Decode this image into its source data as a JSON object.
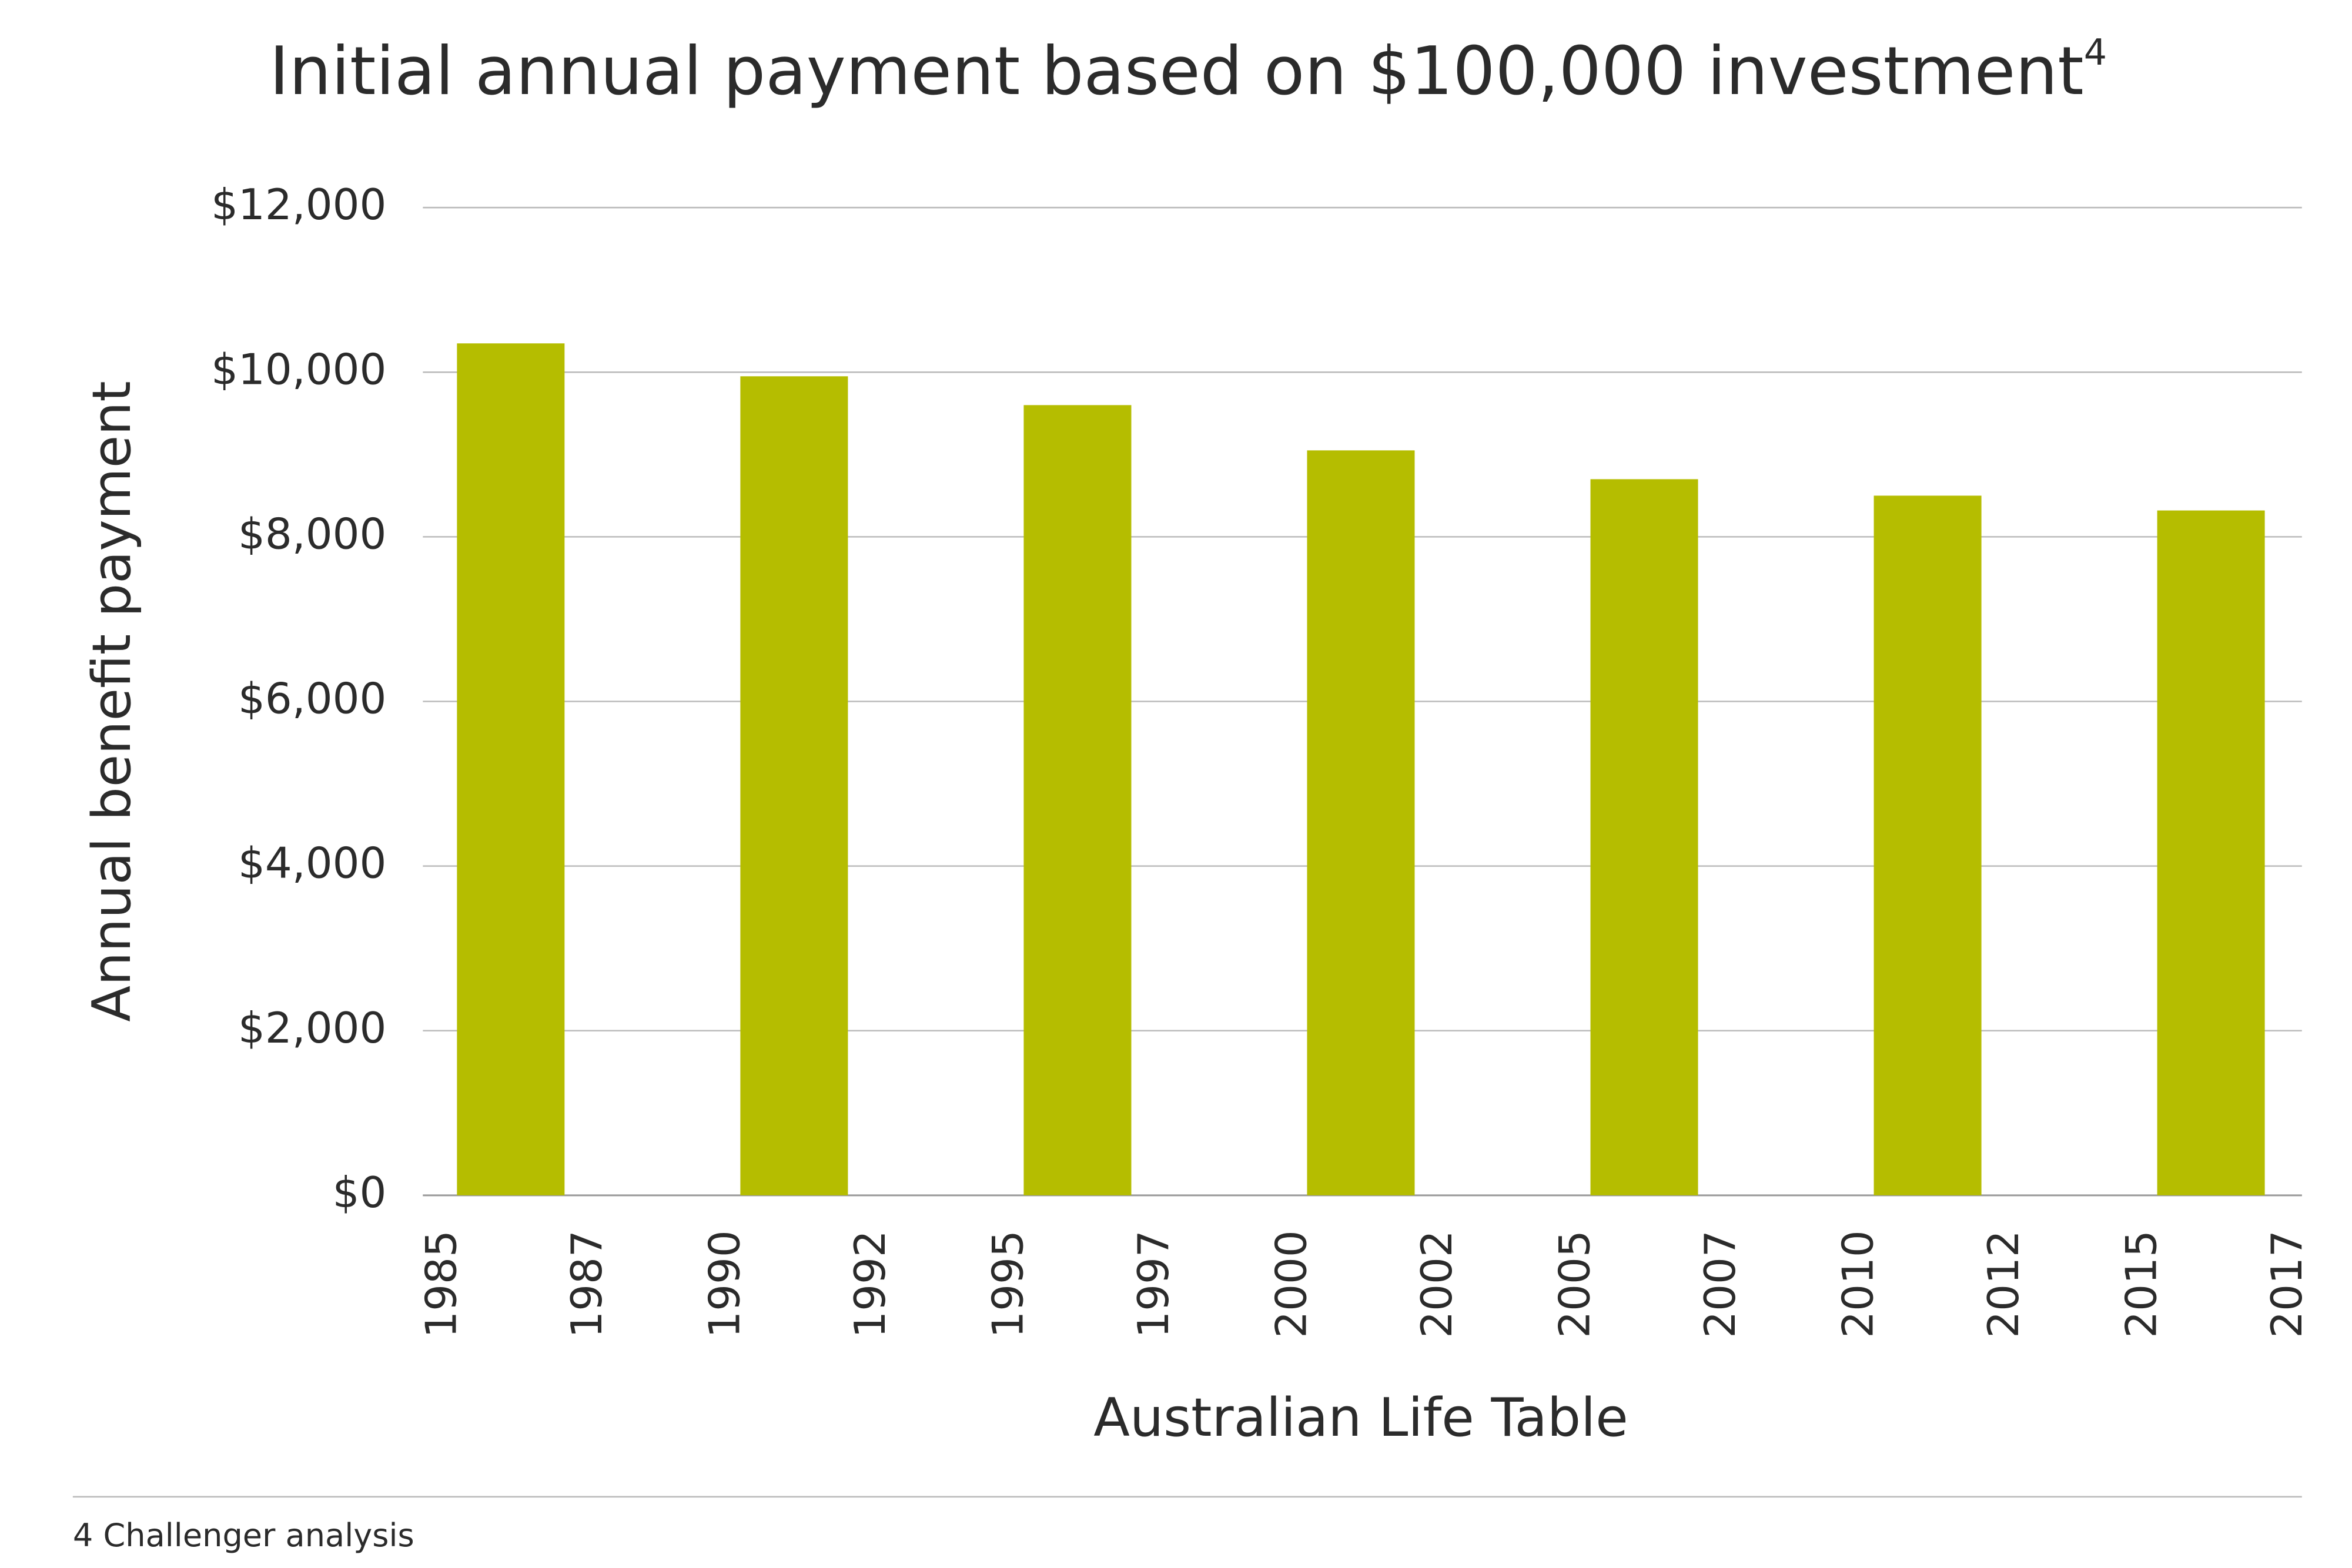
{
  "chart_data": {
    "type": "bar",
    "title": "Initial annual payment based on $100,000 investment",
    "title_footnote_mark": "4",
    "x_label": "Australian Life Table",
    "y_label": "Annual benefit payment",
    "footnote": "4 Challenger analysis",
    "categories": [
      [
        "1985",
        "1987"
      ],
      [
        "1990",
        "1992"
      ],
      [
        "1995",
        "1997"
      ],
      [
        "2000",
        "2002"
      ],
      [
        "2005",
        "2007"
      ],
      [
        "2010",
        "2012"
      ],
      [
        "2015",
        "2017"
      ]
    ],
    "values": [
      10350,
      9950,
      9600,
      9050,
      8700,
      8500,
      8320
    ],
    "color": "#b5bd00",
    "ylim": [
      0,
      12000
    ],
    "yticks": [
      {
        "value": 0,
        "label": "$0"
      },
      {
        "value": 2000,
        "label": "$2,000"
      },
      {
        "value": 4000,
        "label": "$4,000"
      },
      {
        "value": 6000,
        "label": "$6,000"
      },
      {
        "value": 8000,
        "label": "$8,000"
      },
      {
        "value": 10000,
        "label": "$10,000"
      },
      {
        "value": 12000,
        "label": "$12,000"
      }
    ],
    "grid": true
  }
}
